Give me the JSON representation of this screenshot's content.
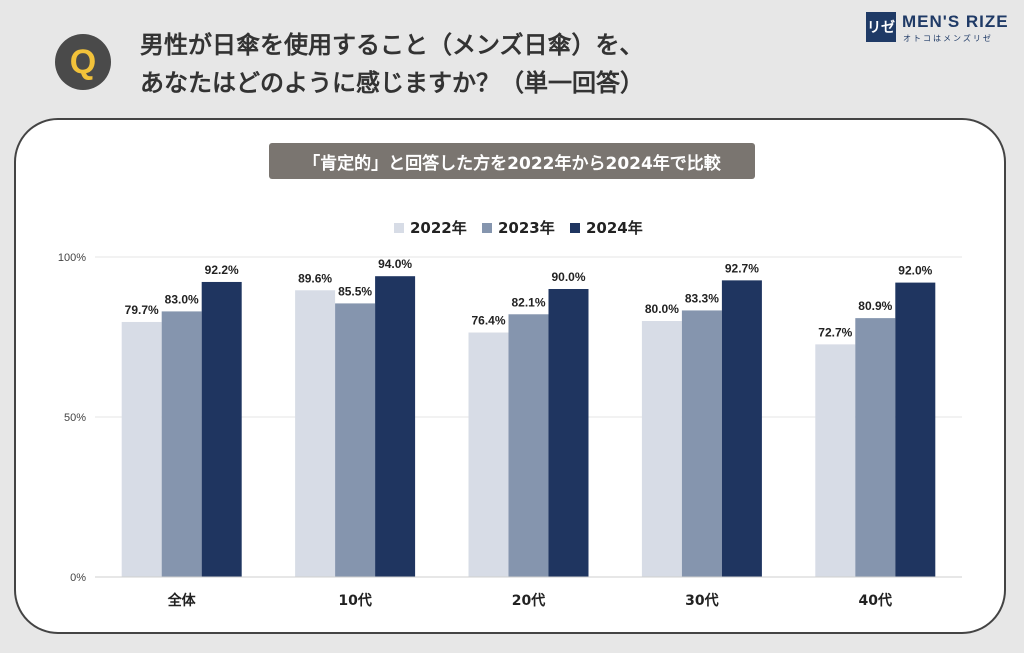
{
  "header": {
    "badge": "Q",
    "question_line1": "男性が日傘を使用すること（メンズ日傘）を、",
    "question_line2": "あなたはどのように感じますか？（単一回答）"
  },
  "logo": {
    "mark": "リゼ",
    "name": "MEN'S RIZE",
    "tagline": "オトコはメンズリゼ"
  },
  "banner": "「肯定的」と回答した方を2022年から2024年で比較",
  "colors": {
    "series_2022": "#d7dce6",
    "series_2023": "#8595ae",
    "series_2024": "#1f3560",
    "grid": "#e6e6e6"
  },
  "chart_data": {
    "type": "bar",
    "categories": [
      "全体",
      "10代",
      "20代",
      "30代",
      "40代"
    ],
    "series": [
      {
        "name": "2022年",
        "values": [
          79.7,
          89.6,
          76.4,
          80.0,
          72.7
        ]
      },
      {
        "name": "2023年",
        "values": [
          83.0,
          85.5,
          82.1,
          83.3,
          80.9
        ]
      },
      {
        "name": "2024年",
        "values": [
          92.2,
          94.0,
          90.0,
          92.7,
          92.0
        ]
      }
    ],
    "value_labels": [
      [
        "79.7%",
        "89.6%",
        "76.4%",
        "80.0%",
        "72.7%"
      ],
      [
        "83.0%",
        "85.5%",
        "82.1%",
        "83.3%",
        "80.9%"
      ],
      [
        "92.2%",
        "94.0%",
        "90.0%",
        "92.7%",
        "92.0%"
      ]
    ],
    "y_ticks": [
      {
        "value": 0,
        "label": "0%"
      },
      {
        "value": 50,
        "label": "50%"
      },
      {
        "value": 100,
        "label": "100%"
      }
    ],
    "ylim": [
      0,
      100
    ],
    "legend_position": "top-center",
    "grid": true
  }
}
